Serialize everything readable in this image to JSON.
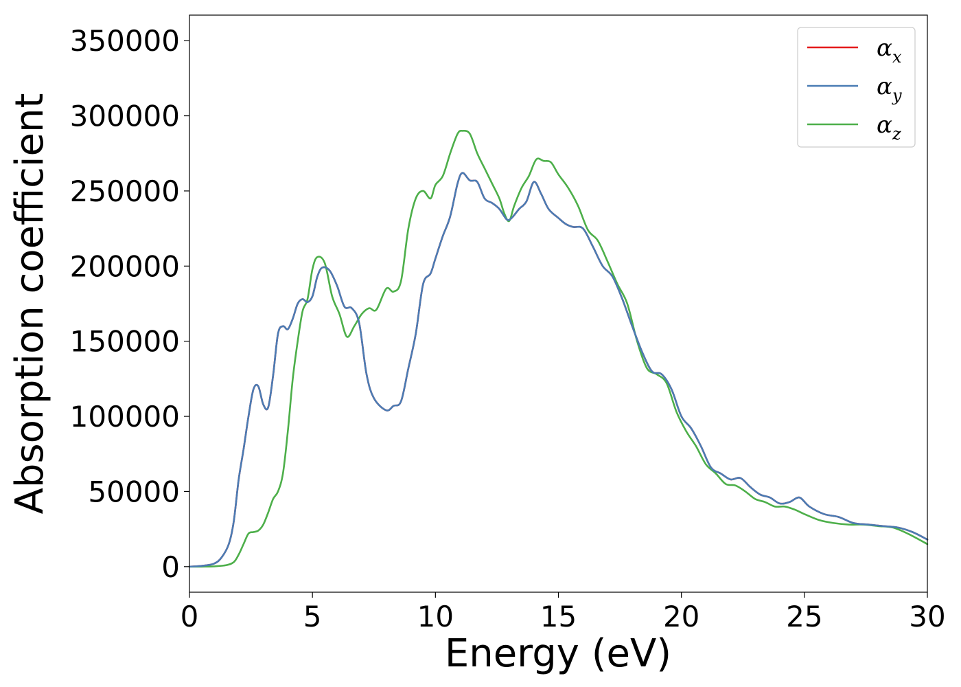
{
  "chart_data": {
    "type": "line",
    "xlabel": "Energy (eV)",
    "ylabel": "Absorption coefficient",
    "xlim": [
      0,
      30
    ],
    "ylim": [
      -17000,
      367000
    ],
    "xticks": [
      0,
      5,
      10,
      15,
      20,
      25,
      30
    ],
    "xtick_labels": [
      "0",
      "5",
      "10",
      "15",
      "20",
      "25",
      "30"
    ],
    "yticks": [
      0,
      50000,
      100000,
      150000,
      200000,
      250000,
      300000,
      350000
    ],
    "ytick_labels": [
      "0",
      "50000",
      "100000",
      "150000",
      "200000",
      "250000",
      "300000",
      "350000"
    ],
    "grid": false,
    "legend_position": "top-right",
    "series": [
      {
        "name": "α_x",
        "legend_symbol": "α",
        "legend_subscript": "x",
        "color": "#e41a1c",
        "x": [
          0,
          0.5,
          1,
          1.3,
          1.6,
          1.8,
          2,
          2.2,
          2.4,
          2.6,
          2.8,
          3,
          3.2,
          3.4,
          3.6,
          3.8,
          4,
          4.2,
          4.4,
          4.6,
          4.8,
          5,
          5.2,
          5.4,
          5.7,
          6,
          6.3,
          6.6,
          6.9,
          7.2,
          7.5,
          8,
          8.3,
          8.6,
          8.9,
          9.2,
          9.5,
          9.8,
          10,
          10.3,
          10.6,
          10.9,
          11.1,
          11.4,
          11.7,
          12,
          12.3,
          12.6,
          12.9,
          13.1,
          13.4,
          13.7,
          14,
          14.3,
          14.6,
          15,
          15.3,
          15.6,
          16,
          16.4,
          16.8,
          17.2,
          17.6,
          18,
          18.4,
          18.8,
          19.2,
          19.6,
          20,
          20.4,
          20.8,
          21.2,
          21.6,
          22,
          22.4,
          22.8,
          23.2,
          23.6,
          24,
          24.4,
          24.8,
          25.2,
          25.8,
          26.4,
          27,
          27.6,
          28.2,
          28.8,
          29.4,
          30
        ],
        "y": [
          0,
          500,
          2000,
          6000,
          15000,
          30000,
          58000,
          78000,
          100000,
          118000,
          120000,
          108000,
          106000,
          127000,
          155000,
          160000,
          158000,
          165000,
          175000,
          178000,
          176000,
          180000,
          193000,
          199000,
          197000,
          187000,
          173000,
          172000,
          162000,
          128000,
          112000,
          104000,
          107000,
          110000,
          132000,
          155000,
          188000,
          195000,
          205000,
          220000,
          233000,
          255000,
          262000,
          257000,
          256000,
          245000,
          242000,
          238000,
          231000,
          232000,
          238000,
          243000,
          256000,
          248000,
          238000,
          232000,
          228000,
          226000,
          225000,
          213000,
          200000,
          193000,
          178000,
          160000,
          143000,
          130000,
          128000,
          118000,
          100000,
          92000,
          80000,
          66000,
          62000,
          58000,
          59000,
          53000,
          48000,
          46000,
          42000,
          43000,
          46000,
          40000,
          35000,
          33000,
          29000,
          28000,
          27000,
          26000,
          23000,
          18000
        ]
      },
      {
        "name": "α_y",
        "legend_symbol": "α",
        "legend_subscript": "y",
        "color": "#4a7cb4",
        "x": [
          0,
          0.5,
          1,
          1.3,
          1.6,
          1.8,
          2,
          2.2,
          2.4,
          2.6,
          2.8,
          3,
          3.2,
          3.4,
          3.6,
          3.8,
          4,
          4.2,
          4.4,
          4.6,
          4.8,
          5,
          5.2,
          5.4,
          5.7,
          6,
          6.3,
          6.6,
          6.9,
          7.2,
          7.5,
          8,
          8.3,
          8.6,
          8.9,
          9.2,
          9.5,
          9.8,
          10,
          10.3,
          10.6,
          10.9,
          11.1,
          11.4,
          11.7,
          12,
          12.3,
          12.6,
          12.9,
          13.1,
          13.4,
          13.7,
          14,
          14.3,
          14.6,
          15,
          15.3,
          15.6,
          16,
          16.4,
          16.8,
          17.2,
          17.6,
          18,
          18.4,
          18.8,
          19.2,
          19.6,
          20,
          20.4,
          20.8,
          21.2,
          21.6,
          22,
          22.4,
          22.8,
          23.2,
          23.6,
          24,
          24.4,
          24.8,
          25.2,
          25.8,
          26.4,
          27,
          27.6,
          28.2,
          28.8,
          29.4,
          30
        ],
        "y": [
          0,
          500,
          2000,
          6000,
          15000,
          30000,
          58000,
          78000,
          100000,
          118000,
          120000,
          108000,
          106000,
          127000,
          155000,
          160000,
          158000,
          165000,
          175000,
          178000,
          176000,
          180000,
          193000,
          199000,
          197000,
          187000,
          173000,
          172000,
          162000,
          128000,
          112000,
          104000,
          107000,
          110000,
          132000,
          155000,
          188000,
          195000,
          205000,
          220000,
          233000,
          255000,
          262000,
          257000,
          256000,
          245000,
          242000,
          238000,
          231000,
          232000,
          238000,
          243000,
          256000,
          248000,
          238000,
          232000,
          228000,
          226000,
          225000,
          213000,
          200000,
          193000,
          178000,
          160000,
          143000,
          130000,
          128000,
          118000,
          100000,
          92000,
          80000,
          66000,
          62000,
          58000,
          59000,
          53000,
          48000,
          46000,
          42000,
          43000,
          46000,
          40000,
          35000,
          33000,
          29000,
          28000,
          27000,
          26000,
          23000,
          18000
        ]
      },
      {
        "name": "α_z",
        "legend_symbol": "α",
        "legend_subscript": "z",
        "color": "#4daf4a",
        "x": [
          0,
          0.5,
          1,
          1.5,
          1.8,
          2,
          2.2,
          2.4,
          2.6,
          2.8,
          3,
          3.2,
          3.4,
          3.6,
          3.8,
          4,
          4.2,
          4.4,
          4.6,
          4.8,
          5,
          5.2,
          5.5,
          5.8,
          6.1,
          6.4,
          6.7,
          7,
          7.3,
          7.6,
          8,
          8.3,
          8.6,
          8.9,
          9.2,
          9.5,
          9.8,
          10,
          10.3,
          10.6,
          10.9,
          11.1,
          11.4,
          11.7,
          12,
          12.3,
          12.6,
          12.8,
          13,
          13.2,
          13.5,
          13.8,
          14.1,
          14.4,
          14.7,
          15,
          15.4,
          15.8,
          16.2,
          16.6,
          17,
          17.4,
          17.8,
          18.2,
          18.6,
          19,
          19.4,
          19.8,
          20.2,
          20.6,
          21,
          21.4,
          21.8,
          22.2,
          22.6,
          23,
          23.4,
          23.8,
          24.2,
          24.6,
          25,
          25.6,
          26.2,
          26.8,
          27.4,
          28,
          28.6,
          29.2,
          30
        ],
        "y": [
          0,
          0,
          200,
          1000,
          3000,
          8000,
          15000,
          22000,
          23000,
          24000,
          28000,
          36000,
          45000,
          50000,
          62000,
          90000,
          125000,
          150000,
          170000,
          178000,
          198000,
          206000,
          202000,
          180000,
          168000,
          153000,
          160000,
          168000,
          172000,
          171000,
          185000,
          183000,
          190000,
          225000,
          245000,
          250000,
          245000,
          254000,
          260000,
          275000,
          288000,
          290000,
          288000,
          275000,
          265000,
          255000,
          245000,
          235000,
          230000,
          240000,
          252000,
          260000,
          271000,
          270000,
          269000,
          261000,
          252000,
          240000,
          224000,
          217000,
          203000,
          188000,
          175000,
          150000,
          132000,
          128000,
          122000,
          103000,
          90000,
          80000,
          68000,
          62000,
          55000,
          54000,
          50000,
          45000,
          43000,
          40000,
          40000,
          38000,
          35000,
          31000,
          29000,
          28000,
          28000,
          27000,
          26000,
          22000,
          15000
        ]
      }
    ]
  }
}
